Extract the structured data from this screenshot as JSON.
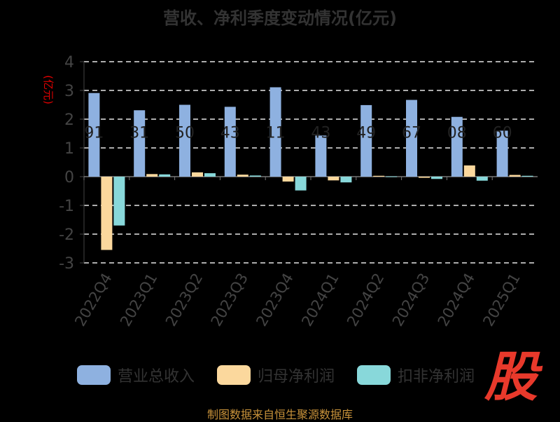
{
  "chart_data": {
    "type": "bar",
    "title": "营收、净利季度变动情况(亿元)",
    "ylabel": "(亿元)",
    "ylim": [
      -3,
      4
    ],
    "yticks": [
      4,
      3,
      2,
      1,
      0,
      -1,
      -2,
      -3
    ],
    "grid": true,
    "legend_position": "bottom",
    "categories": [
      "2022Q4",
      "2023Q1",
      "2023Q2",
      "2023Q3",
      "2023Q4",
      "2024Q1",
      "2024Q2",
      "2024Q3",
      "2024Q4",
      "2025Q1"
    ],
    "series": [
      {
        "name": "营业总收入",
        "color": "#8eb1e0",
        "values": [
          2.91,
          2.31,
          2.5,
          2.43,
          3.11,
          1.43,
          2.49,
          2.67,
          2.08,
          1.6
        ]
      },
      {
        "name": "归母净利润",
        "color": "#fbd89d",
        "values": [
          -2.55,
          0.09,
          0.15,
          0.07,
          -0.17,
          -0.13,
          0.03,
          -0.04,
          0.39,
          0.06
        ]
      },
      {
        "name": "扣非净利润",
        "color": "#88d8da",
        "values": [
          -1.7,
          0.08,
          0.12,
          0.04,
          -0.48,
          -0.2,
          0.01,
          -0.08,
          -0.14,
          0.03
        ]
      }
    ],
    "data_labels": [
      "91",
      "31",
      "50",
      "43",
      "11",
      "43",
      "49",
      "67",
      "08",
      "60"
    ]
  },
  "source_note": "制图数据来自恒生聚源数据库",
  "brand_mark": "股"
}
